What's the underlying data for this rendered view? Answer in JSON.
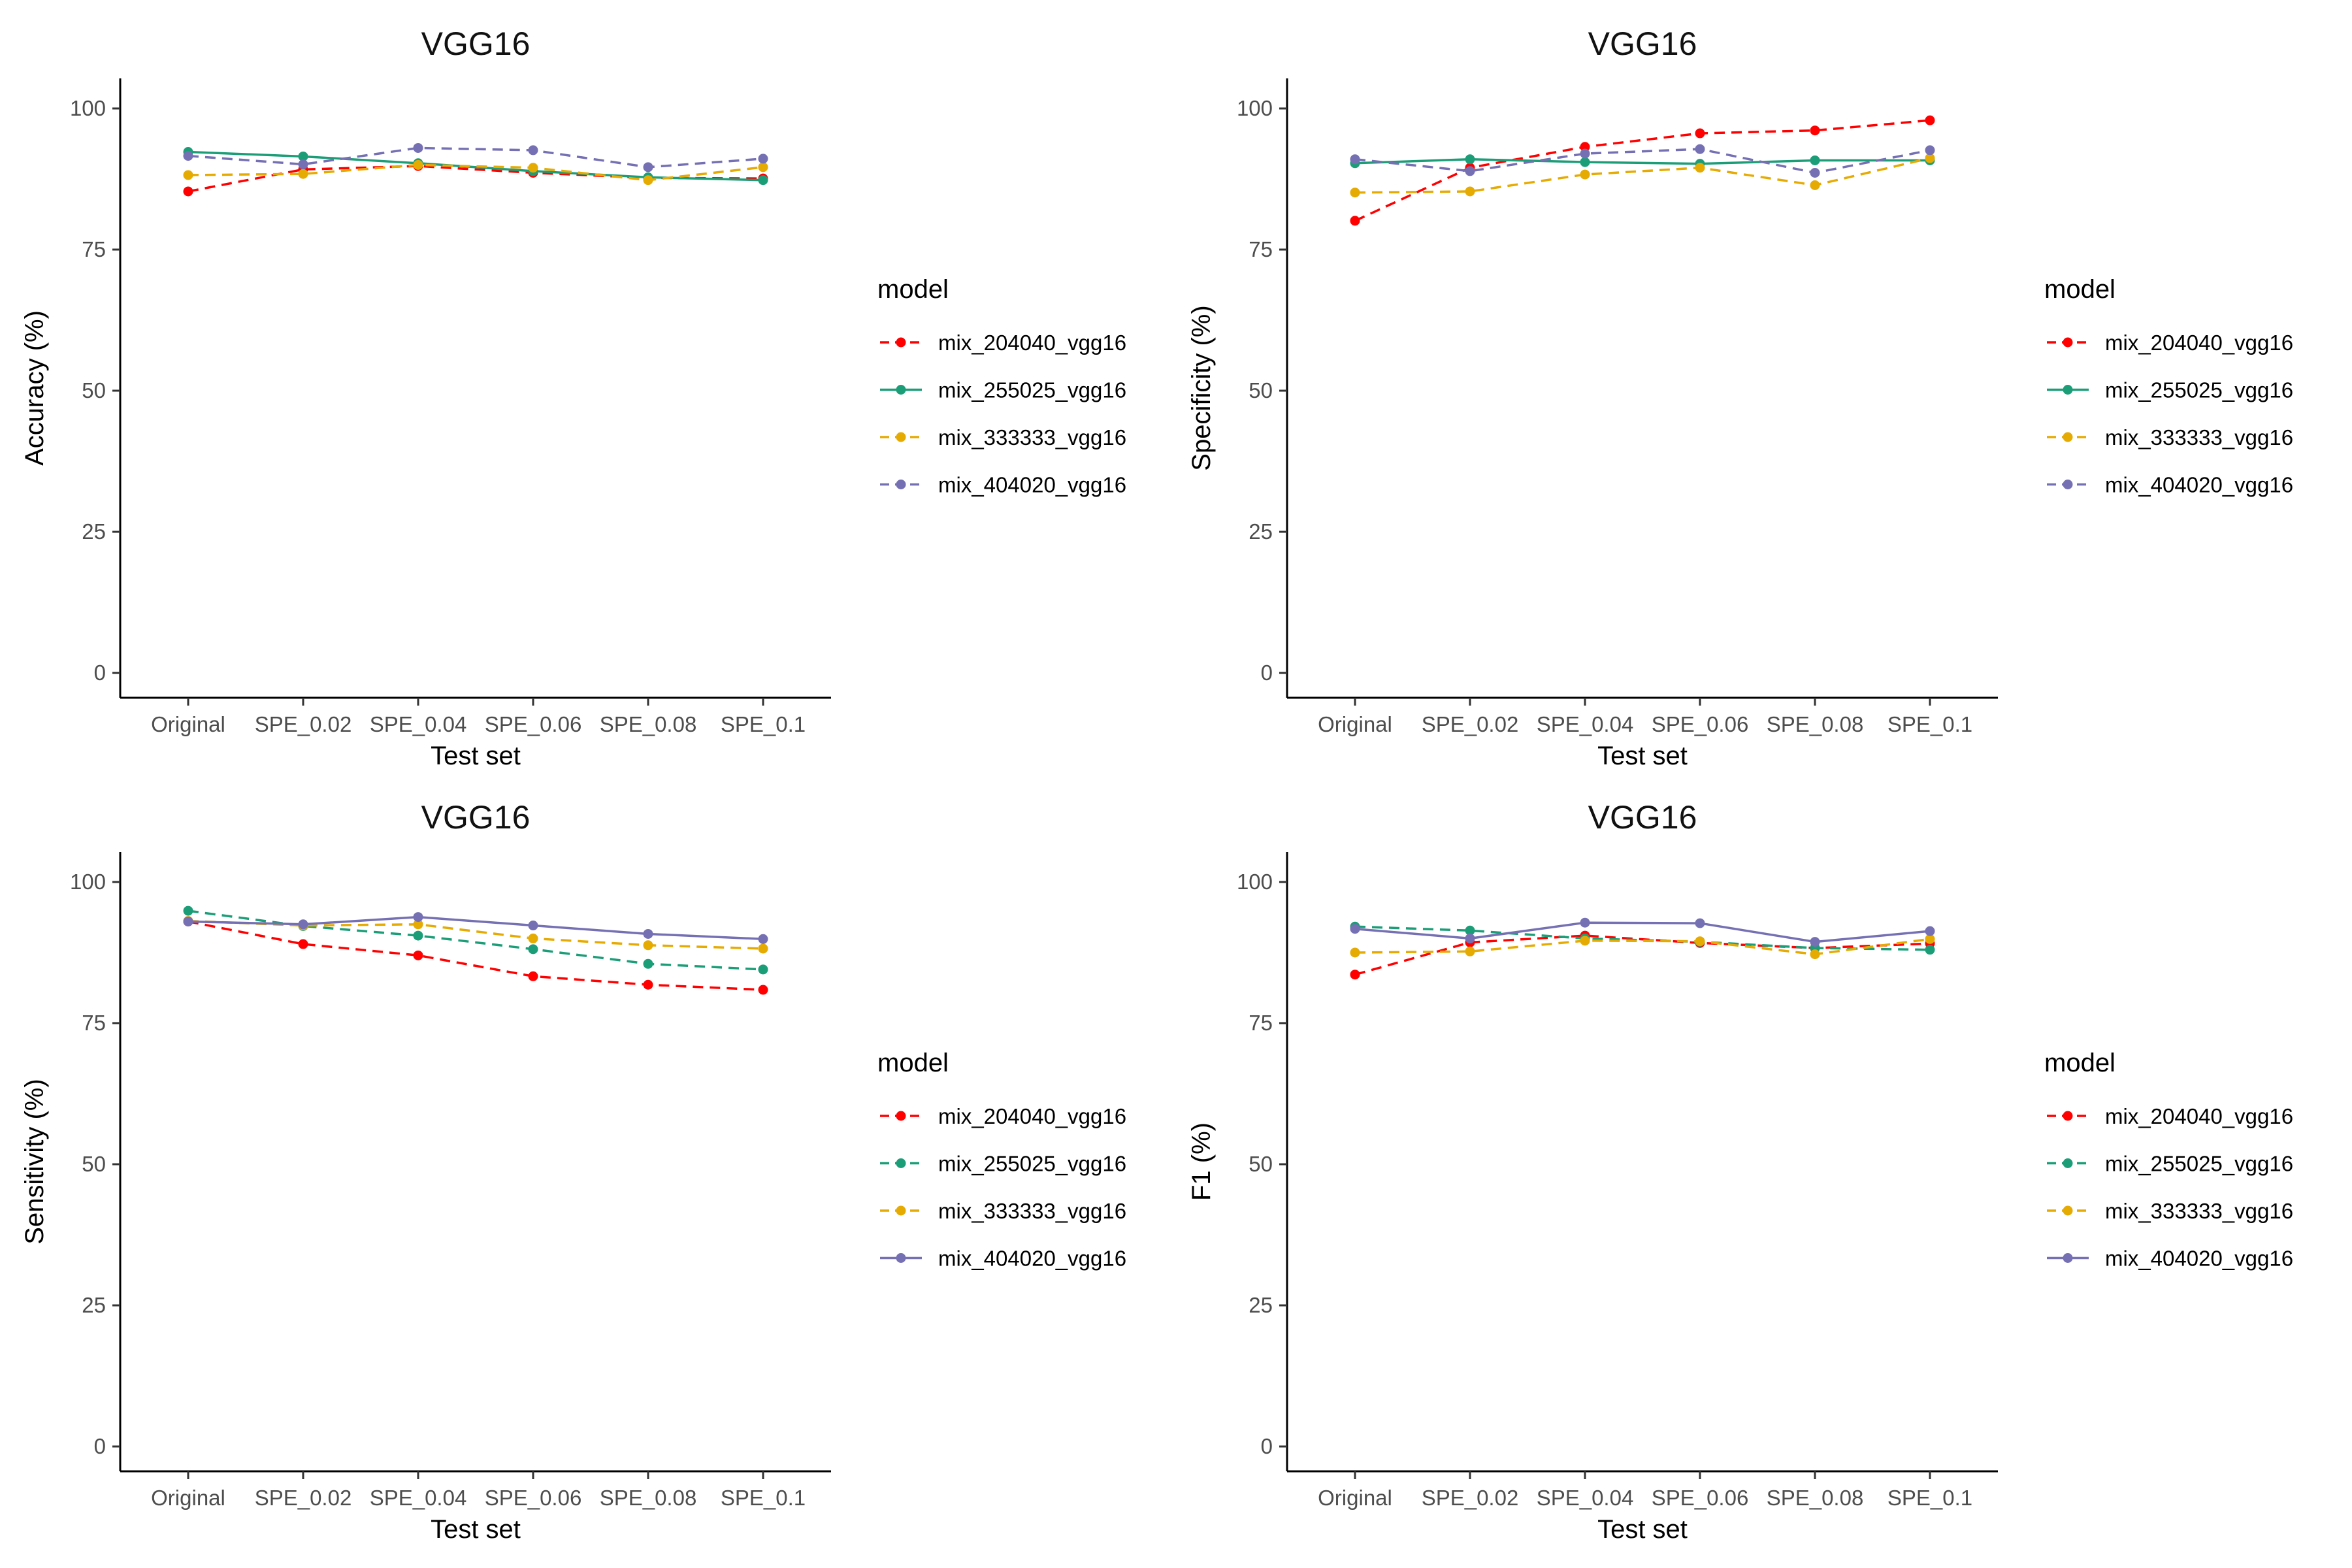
{
  "chart_data": [
    {
      "type": "line",
      "title": "VGG16",
      "xlabel": "Test set",
      "ylabel": "Accuracy (%)",
      "ylim": [
        0,
        100
      ],
      "yticks": [
        0,
        25,
        50,
        75,
        100
      ],
      "categories": [
        "Original",
        "SPE_0.02",
        "SPE_0.04",
        "SPE_0.06",
        "SPE_0.08",
        "SPE_0.1"
      ],
      "legend_title": "model",
      "legend_position": "right",
      "grid": false,
      "series": [
        {
          "name": "mix_204040_vgg16",
          "color": "#ff0000",
          "linetype": "dashed",
          "values": [
            85.3,
            89.2,
            89.8,
            88.6,
            87.7,
            87.6
          ]
        },
        {
          "name": "mix_255025_vgg16",
          "color": "#1b9e77",
          "linetype": "solid",
          "values": [
            92.3,
            91.5,
            90.3,
            88.9,
            87.8,
            87.3
          ]
        },
        {
          "name": "mix_333333_vgg16",
          "color": "#e6ab02",
          "linetype": "dashed",
          "values": [
            88.2,
            88.4,
            90.0,
            89.5,
            87.3,
            89.6
          ]
        },
        {
          "name": "mix_404020_vgg16",
          "color": "#7570b3",
          "linetype": "dashed",
          "values": [
            91.6,
            90.1,
            93.0,
            92.6,
            89.6,
            91.1
          ]
        }
      ]
    },
    {
      "type": "line",
      "title": "VGG16",
      "xlabel": "Test set",
      "ylabel": "Specificity (%)",
      "ylim": [
        0,
        100
      ],
      "yticks": [
        0,
        25,
        50,
        75,
        100
      ],
      "categories": [
        "Original",
        "SPE_0.02",
        "SPE_0.04",
        "SPE_0.06",
        "SPE_0.08",
        "SPE_0.1"
      ],
      "legend_title": "model",
      "legend_position": "right",
      "grid": false,
      "series": [
        {
          "name": "mix_204040_vgg16",
          "color": "#ff0000",
          "linetype": "dashed",
          "values": [
            80.1,
            89.5,
            93.2,
            95.6,
            96.1,
            97.9
          ]
        },
        {
          "name": "mix_255025_vgg16",
          "color": "#1b9e77",
          "linetype": "solid",
          "values": [
            90.3,
            91.0,
            90.5,
            90.2,
            90.8,
            90.8
          ]
        },
        {
          "name": "mix_333333_vgg16",
          "color": "#e6ab02",
          "linetype": "dashed",
          "values": [
            85.1,
            85.3,
            88.3,
            89.5,
            86.4,
            91.2
          ]
        },
        {
          "name": "mix_404020_vgg16",
          "color": "#7570b3",
          "linetype": "dashed",
          "values": [
            91.0,
            88.9,
            92.0,
            92.8,
            88.6,
            92.6
          ]
        }
      ]
    },
    {
      "type": "line",
      "title": "VGG16",
      "xlabel": "Test set",
      "ylabel": "Sensitivity (%)",
      "ylim": [
        0,
        100
      ],
      "yticks": [
        0,
        25,
        50,
        75,
        100
      ],
      "categories": [
        "Original",
        "SPE_0.02",
        "SPE_0.04",
        "SPE_0.06",
        "SPE_0.08",
        "SPE_0.1"
      ],
      "legend_title": "model",
      "legend_position": "right",
      "grid": false,
      "series": [
        {
          "name": "mix_204040_vgg16",
          "color": "#ff0000",
          "linetype": "dashed",
          "values": [
            93.0,
            89.0,
            87.0,
            83.3,
            81.8,
            80.9
          ]
        },
        {
          "name": "mix_255025_vgg16",
          "color": "#1b9e77",
          "linetype": "dashed",
          "values": [
            94.9,
            92.2,
            90.5,
            88.1,
            85.5,
            84.5
          ]
        },
        {
          "name": "mix_333333_vgg16",
          "color": "#e6ab02",
          "linetype": "dashed",
          "values": [
            93.1,
            92.3,
            92.5,
            90.0,
            88.8,
            88.2
          ]
        },
        {
          "name": "mix_404020_vgg16",
          "color": "#7570b3",
          "linetype": "solid",
          "values": [
            93.0,
            92.5,
            93.8,
            92.3,
            90.8,
            89.9
          ]
        }
      ]
    },
    {
      "type": "line",
      "title": "VGG16",
      "xlabel": "Test set",
      "ylabel": "F1 (%)",
      "ylim": [
        0,
        100
      ],
      "yticks": [
        0,
        25,
        50,
        75,
        100
      ],
      "categories": [
        "Original",
        "SPE_0.02",
        "SPE_0.04",
        "SPE_0.06",
        "SPE_0.08",
        "SPE_0.1"
      ],
      "legend_title": "model",
      "legend_position": "right",
      "grid": false,
      "series": [
        {
          "name": "mix_204040_vgg16",
          "color": "#ff0000",
          "linetype": "dashed",
          "values": [
            83.6,
            89.3,
            90.5,
            89.2,
            88.3,
            89.1
          ]
        },
        {
          "name": "mix_255025_vgg16",
          "color": "#1b9e77",
          "linetype": "dashed",
          "values": [
            92.1,
            91.4,
            90.0,
            89.4,
            88.3,
            88.0
          ]
        },
        {
          "name": "mix_333333_vgg16",
          "color": "#e6ab02",
          "linetype": "dashed",
          "values": [
            87.5,
            87.7,
            89.6,
            89.5,
            87.2,
            89.9
          ]
        },
        {
          "name": "mix_404020_vgg16",
          "color": "#7570b3",
          "linetype": "solid",
          "values": [
            91.7,
            90.0,
            92.8,
            92.7,
            89.4,
            91.3
          ]
        }
      ]
    }
  ]
}
